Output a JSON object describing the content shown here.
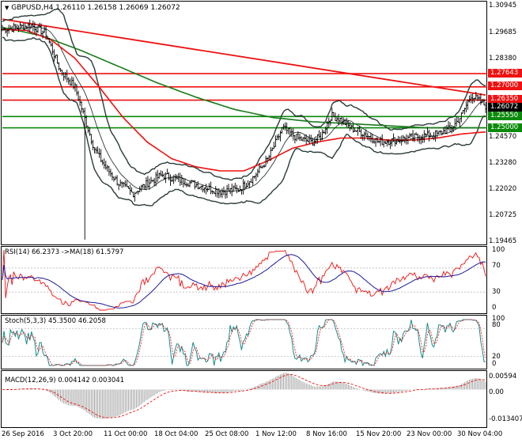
{
  "window": {
    "title": "GBPUSD,H4  1.26110 1.26158 1.26069 1.26072"
  },
  "colors": {
    "background": "#ffffff",
    "price_bars": "#000000",
    "ma_red": "#ee1111",
    "ma_green": "#1a7a1a",
    "bollinger": "#2b3a3a",
    "rsi": "#ee1111",
    "rsi_ma": "#1a1a99",
    "stoch_main": "#1a8a8a",
    "stoch_signal": "#ee1111",
    "macd_hist": "#999999",
    "macd_signal": "#ee1111",
    "level_red": "#ee1111",
    "level_green": "#0a8a0a"
  },
  "chart_data": [
    {
      "type": "line",
      "panel": "price",
      "symbol": "GBPUSD",
      "timeframe": "H4",
      "ohlc_header": {
        "open": 1.2611,
        "high": 1.26158,
        "low": 1.26069,
        "close": 1.26072
      },
      "y_ticks": [
        "1.30945",
        "1.29685",
        "1.28380",
        "1.27643",
        "1.27000",
        "1.26350",
        "1.26072",
        "1.25550",
        "1.25000",
        "1.24570",
        "1.23280",
        "1.22020",
        "1.20725",
        "1.19465"
      ],
      "ylim": [
        1.1935,
        1.3112
      ],
      "current_price": 1.26072,
      "horizontal_levels": [
        {
          "value": 1.27643,
          "label": "1.27643",
          "color": "red"
        },
        {
          "value": 1.27,
          "label": "1.27000",
          "color": "red"
        },
        {
          "value": 1.2635,
          "label": "1.26350",
          "color": "red"
        },
        {
          "value": 1.2555,
          "label": "1.25550",
          "color": "green"
        },
        {
          "value": 1.25,
          "label": "1.25000",
          "color": "green"
        }
      ],
      "trendline": {
        "from": [
          0,
          1.303
        ],
        "to": [
          1,
          1.266
        ]
      },
      "price_path": [
        [
          0.0,
          1.298
        ],
        [
          0.03,
          1.299
        ],
        [
          0.06,
          1.3
        ],
        [
          0.09,
          1.296
        ],
        [
          0.12,
          1.278
        ],
        [
          0.15,
          1.27
        ],
        [
          0.17,
          1.255
        ],
        [
          0.19,
          1.24
        ],
        [
          0.21,
          1.232
        ],
        [
          0.24,
          1.223
        ],
        [
          0.27,
          1.218
        ],
        [
          0.3,
          1.223
        ],
        [
          0.33,
          1.227
        ],
        [
          0.36,
          1.225
        ],
        [
          0.39,
          1.223
        ],
        [
          0.42,
          1.221
        ],
        [
          0.45,
          1.219
        ],
        [
          0.49,
          1.22
        ],
        [
          0.52,
          1.226
        ],
        [
          0.55,
          1.235
        ],
        [
          0.58,
          1.25
        ],
        [
          0.61,
          1.245
        ],
        [
          0.64,
          1.243
        ],
        [
          0.66,
          1.246
        ],
        [
          0.68,
          1.256
        ],
        [
          0.7,
          1.254
        ],
        [
          0.72,
          1.25
        ],
        [
          0.75,
          1.247
        ],
        [
          0.78,
          1.243
        ],
        [
          0.81,
          1.244
        ],
        [
          0.84,
          1.245
        ],
        [
          0.87,
          1.246
        ],
        [
          0.9,
          1.247
        ],
        [
          0.93,
          1.25
        ],
        [
          0.95,
          1.256
        ],
        [
          0.97,
          1.266
        ],
        [
          1.0,
          1.2607
        ]
      ],
      "ma_fast_red": [
        [
          0.0,
          1.298
        ],
        [
          0.05,
          1.2975
        ],
        [
          0.1,
          1.293
        ],
        [
          0.15,
          1.284
        ],
        [
          0.2,
          1.27
        ],
        [
          0.25,
          1.255
        ],
        [
          0.3,
          1.243
        ],
        [
          0.35,
          1.235
        ],
        [
          0.4,
          1.231
        ],
        [
          0.45,
          1.229
        ],
        [
          0.5,
          1.229
        ],
        [
          0.55,
          1.234
        ],
        [
          0.6,
          1.24
        ],
        [
          0.65,
          1.243
        ],
        [
          0.7,
          1.245
        ],
        [
          0.75,
          1.245
        ],
        [
          0.8,
          1.244
        ],
        [
          0.85,
          1.244
        ],
        [
          0.9,
          1.245
        ],
        [
          0.95,
          1.247
        ],
        [
          1.0,
          1.248
        ]
      ],
      "ma_slow_green": [
        [
          0.0,
          1.299
        ],
        [
          0.08,
          1.295
        ],
        [
          0.16,
          1.288
        ],
        [
          0.24,
          1.28
        ],
        [
          0.32,
          1.272
        ],
        [
          0.4,
          1.265
        ],
        [
          0.48,
          1.259
        ],
        [
          0.56,
          1.255
        ],
        [
          0.64,
          1.253
        ],
        [
          0.72,
          1.252
        ],
        [
          0.8,
          1.251
        ],
        [
          0.88,
          1.25
        ],
        [
          0.96,
          1.25
        ],
        [
          1.0,
          1.25
        ]
      ]
    },
    {
      "type": "line",
      "panel": "rsi",
      "label": "RSI(14) 66.2373  ->MA(18) 61.5797",
      "y_ticks": [
        "100",
        "70",
        "30",
        "0"
      ],
      "ylim": [
        0,
        100
      ],
      "rsi_value": 66.2373,
      "ma_value": 61.5797
    },
    {
      "type": "line",
      "panel": "stochastic",
      "label": "Stoch(5,3,3) 45.3500 46.2058",
      "y_ticks": [
        "100",
        "80",
        "20",
        "0"
      ],
      "ylim": [
        0,
        100
      ],
      "main_value": 45.35,
      "signal_value": 46.2058
    },
    {
      "type": "bar",
      "panel": "macd",
      "label": "MACD(12,26,9) 0.004142 0.003041",
      "y_ticks": [
        "0.00594",
        "0.00",
        "-0.013407"
      ],
      "ylim": [
        -0.0145,
        0.0065
      ],
      "macd_value": 0.004142,
      "signal_value": 0.003041
    }
  ],
  "time_axis": {
    "labels": [
      "26 Sep 2016",
      "3 Oct 20:00",
      "11 Oct 00:00",
      "18 Oct 04:00",
      "25 Oct 08:00",
      "1 Nov 12:00",
      "8 Nov 16:00",
      "15 Nov 20:00",
      "23 Nov 00:00",
      "30 Nov 04:00"
    ]
  }
}
